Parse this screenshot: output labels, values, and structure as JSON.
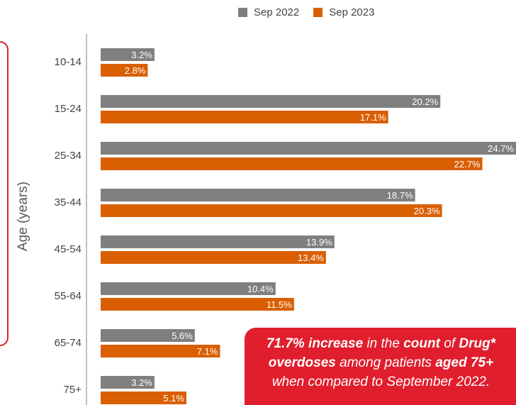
{
  "chart_data": {
    "type": "bar",
    "orientation": "horizontal",
    "categories": [
      "10-14",
      "15-24",
      "25-34",
      "35-44",
      "45-54",
      "55-64",
      "65-74",
      "75+"
    ],
    "series": [
      {
        "name": "Sep 2022",
        "color": "#7f7f7f",
        "values": [
          3.2,
          20.2,
          24.7,
          18.7,
          13.9,
          10.4,
          5.6,
          3.2
        ],
        "labels": [
          "3.2%",
          "20.2%",
          "24.7%",
          "18.7%",
          "13.9%",
          "10.4%",
          "5.6%",
          "3.2%"
        ]
      },
      {
        "name": "Sep 2023",
        "color": "#d95f02",
        "values": [
          2.8,
          17.1,
          22.7,
          20.3,
          13.4,
          11.5,
          7.1,
          5.1
        ],
        "labels": [
          "2.8%",
          "17.1%",
          "22.7%",
          "20.3%",
          "13.4%",
          "11.5%",
          "7.1%",
          "5.1%"
        ]
      }
    ],
    "title": "",
    "xlabel": "",
    "ylabel": "Age (years)",
    "legend_position": "top-center",
    "grid": false,
    "xlim": [
      0,
      24.7
    ]
  },
  "callout": {
    "part1": "71.7% increase",
    "part2": " in the ",
    "part3": "count",
    "part4": " of ",
    "part5": "Drug* overdoses",
    "part6": " among patients ",
    "part7": "aged 75+",
    "part8": " when compared to September 2022."
  },
  "colors": {
    "accent": "#e01e2d"
  }
}
